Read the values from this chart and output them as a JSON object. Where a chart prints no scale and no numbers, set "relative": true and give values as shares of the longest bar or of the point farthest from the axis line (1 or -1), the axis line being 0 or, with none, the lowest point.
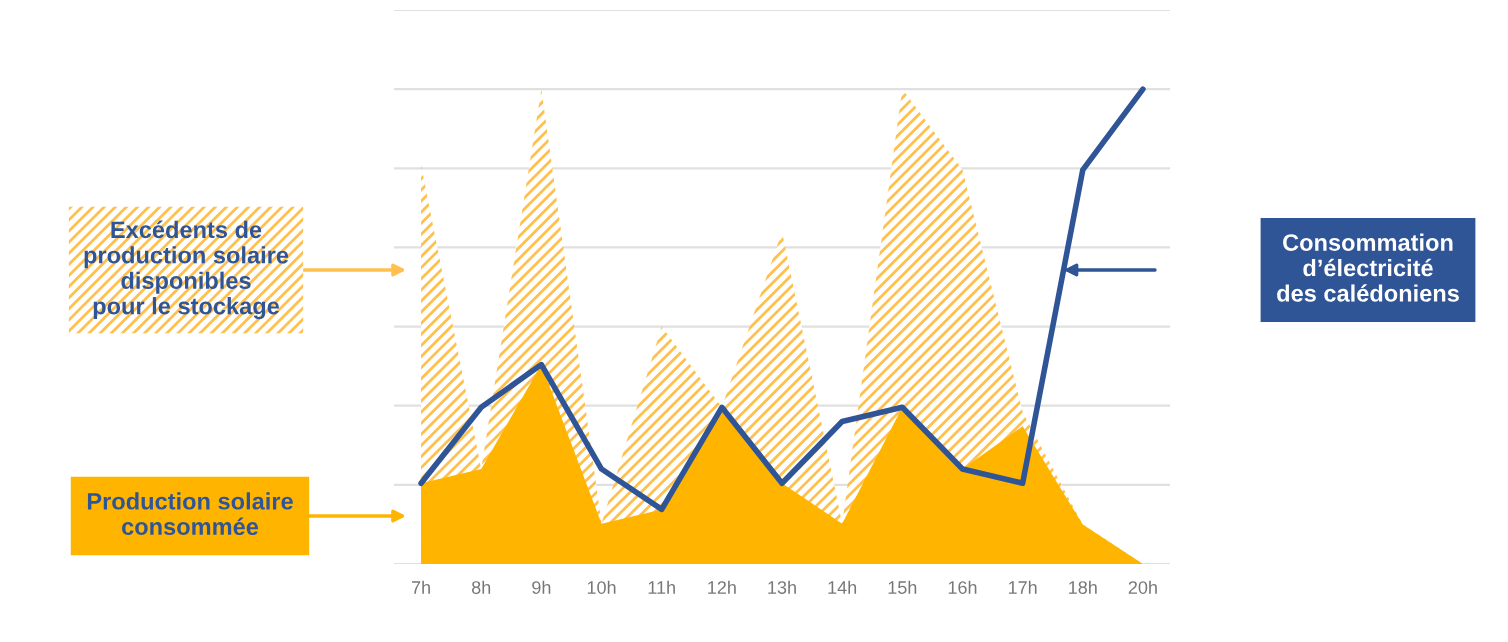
{
  "chart_data": {
    "type": "area",
    "relative": true,
    "grid": "y",
    "categories": [
      "7h",
      "8h",
      "9h",
      "10h",
      "11h",
      "12h",
      "13h",
      "14h",
      "15h",
      "16h",
      "17h",
      "18h",
      "20h"
    ],
    "series": [
      {
        "type": "area",
        "color": "#ffc04d",
        "values": [
          0.84,
          0.2,
          1,
          0.085,
          0.5,
          0.33,
          0.7,
          0.085,
          1,
          0.83,
          0.32,
          0.083,
          0
        ]
      },
      {
        "type": "area",
        "color": "#ffb400",
        "values": [
          0.17,
          0.2,
          0.42,
          0.085,
          0.115,
          0.33,
          0.17,
          0.085,
          0.33,
          0.2,
          0.29,
          0.083,
          0
        ]
      },
      {
        "type": "line",
        "color": "#2f5597",
        "values": [
          0.17,
          0.33,
          0.42,
          0.2,
          0.115,
          0.33,
          0.17,
          0.3,
          0.33,
          0.2,
          0.17,
          0.83,
          1
        ]
      }
    ],
    "annotations": [
      "Excédents de\nproduction solaire\ndisponibles\npour le stockage",
      "Production solaire\nconsommée",
      "Consommation\nd’électricité\ndes calédoniens"
    ]
  }
}
